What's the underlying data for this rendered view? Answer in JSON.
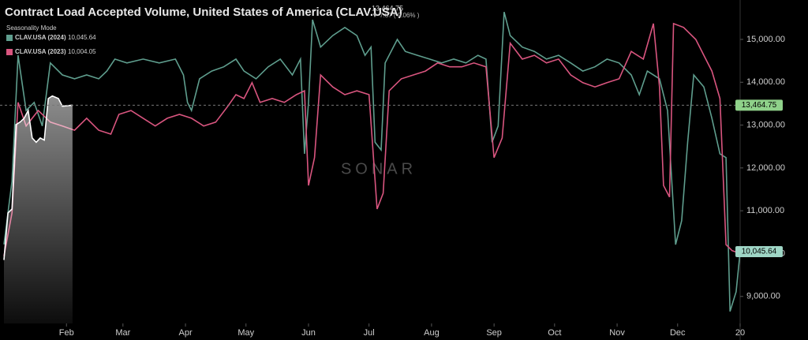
{
  "chart_data": {
    "type": "line",
    "title": "Contract Load Accepted Volume, United States of America (CLAV.USA)",
    "current_label": "13,464.75",
    "change_label": "▼ 7.87 ( 0.06% )",
    "mode_label": "Seasonality Mode",
    "watermark": "SONAR",
    "xlim": [
      1,
      366
    ],
    "ylim": [
      8370,
      15920
    ],
    "xticks": [
      {
        "value": 32,
        "label": "Feb"
      },
      {
        "value": 60,
        "label": "Mar"
      },
      {
        "value": 91,
        "label": "Apr"
      },
      {
        "value": 121,
        "label": "May"
      },
      {
        "value": 152,
        "label": "Jun"
      },
      {
        "value": 182,
        "label": "Jul"
      },
      {
        "value": 213,
        "label": "Aug"
      },
      {
        "value": 244,
        "label": "Sep"
      },
      {
        "value": 274,
        "label": "Oct"
      },
      {
        "value": 305,
        "label": "Nov"
      },
      {
        "value": 335,
        "label": "Dec"
      },
      {
        "value": 366,
        "label": "20"
      }
    ],
    "yticks": [
      {
        "value": 9000,
        "label": "9,000.00"
      },
      {
        "value": 10000,
        "label": "10,000.00"
      },
      {
        "value": 11000,
        "label": "11,000.00"
      },
      {
        "value": 12000,
        "label": "12,000.00"
      },
      {
        "value": 13000,
        "label": "13,000.00"
      },
      {
        "value": 14000,
        "label": "14,000.00"
      },
      {
        "value": 15000,
        "label": "15,000.00"
      }
    ],
    "series": [
      {
        "name": "CLAV.USA (2024)",
        "color": "#5f9e8e",
        "last_label": "10,045.64",
        "x": [
          1,
          5,
          8,
          12,
          16,
          20,
          24,
          30,
          36,
          42,
          48,
          52,
          56,
          62,
          70,
          78,
          86,
          90,
          92,
          94,
          98,
          104,
          110,
          116,
          120,
          126,
          132,
          138,
          144,
          148,
          150,
          152,
          154,
          158,
          164,
          170,
          176,
          180,
          183,
          185,
          188,
          190,
          196,
          200,
          206,
          212,
          218,
          224,
          230,
          236,
          240,
          243,
          246,
          249,
          252,
          258,
          264,
          270,
          276,
          282,
          288,
          294,
          300,
          306,
          312,
          316,
          320,
          326,
          330,
          334,
          337,
          340,
          343,
          348,
          352,
          356,
          359,
          361,
          364,
          366
        ],
        "values": [
          10215,
          11690,
          14630,
          13340,
          13530,
          12980,
          14450,
          14170,
          14080,
          14170,
          14080,
          14260,
          14540,
          14450,
          14540,
          14450,
          14540,
          14170,
          13530,
          13340,
          14080,
          14260,
          14360,
          14540,
          14260,
          14080,
          14360,
          14540,
          14170,
          14540,
          12330,
          13530,
          15460,
          14820,
          15090,
          15280,
          15090,
          14630,
          14820,
          12600,
          12420,
          14450,
          15000,
          14720,
          14630,
          14540,
          14450,
          14540,
          14450,
          14630,
          14540,
          12600,
          12980,
          15640,
          15090,
          14820,
          14720,
          14540,
          14630,
          14450,
          14260,
          14360,
          14540,
          14450,
          14170,
          13710,
          14260,
          14080,
          13340,
          10210,
          10770,
          12600,
          14170,
          13890,
          13160,
          12330,
          12240,
          8650,
          9110,
          10045.64
        ]
      },
      {
        "name": "CLAV.USA (2023)",
        "color": "#d9557f",
        "last_label": "10,004.05",
        "x": [
          1,
          5,
          8,
          12,
          18,
          24,
          30,
          36,
          42,
          48,
          54,
          58,
          64,
          70,
          76,
          82,
          88,
          94,
          100,
          106,
          112,
          116,
          120,
          124,
          128,
          134,
          140,
          146,
          150,
          152,
          155,
          158,
          164,
          170,
          176,
          182,
          186,
          189,
          192,
          198,
          204,
          210,
          216,
          222,
          228,
          234,
          240,
          244,
          248,
          252,
          258,
          264,
          270,
          276,
          282,
          288,
          294,
          300,
          306,
          312,
          318,
          323,
          326,
          328,
          331,
          333,
          338,
          344,
          348,
          352,
          356,
          359,
          362,
          366
        ],
        "values": [
          9940,
          10950,
          13530,
          12980,
          13340,
          13070,
          12980,
          12880,
          13160,
          12880,
          12790,
          13250,
          13340,
          13160,
          12980,
          13160,
          13250,
          13160,
          12980,
          13070,
          13440,
          13710,
          13620,
          13990,
          13530,
          13620,
          13530,
          13710,
          13800,
          11590,
          12240,
          14170,
          13890,
          13710,
          13800,
          13710,
          11040,
          11410,
          13800,
          14080,
          14170,
          14260,
          14450,
          14360,
          14360,
          14450,
          14360,
          12240,
          12700,
          14910,
          14540,
          14630,
          14450,
          14540,
          14170,
          13990,
          13890,
          13990,
          14080,
          14720,
          14540,
          15370,
          13890,
          11590,
          11320,
          15370,
          15280,
          15000,
          14630,
          14260,
          13620,
          10210,
          10070,
          10004.05
        ]
      },
      {
        "color": "#ffffff",
        "area": true,
        "x": [
          1,
          3,
          5,
          7,
          9,
          11,
          13,
          15,
          17,
          19,
          21,
          23,
          25,
          28,
          30,
          35
        ],
        "values": [
          9850,
          10950,
          11040,
          13010,
          13070,
          13160,
          13340,
          12700,
          12600,
          12700,
          12650,
          13620,
          13680,
          13620,
          13440,
          13464.75
        ]
      }
    ]
  }
}
